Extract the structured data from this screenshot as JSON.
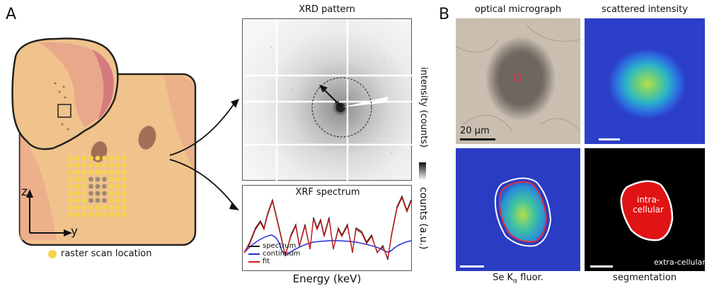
{
  "panels": {
    "a_letter": "A",
    "b_letter": "B"
  },
  "schematic": {
    "axis_z": "z",
    "axis_y": "y",
    "legend_label": "raster scan location",
    "legend_color": "#f2d54a"
  },
  "xrd": {
    "title": "XRD pattern",
    "q_label": "q",
    "q_sub": "r",
    "colorbar_label": "intensity (counts)"
  },
  "xrf": {
    "title": "XRF spectrum",
    "ylabel": "counts (a.u.)",
    "xlabel": "Energy (keV)",
    "legend": [
      {
        "name": "spectrum",
        "color": "#111111"
      },
      {
        "name": "continuum",
        "color": "#1d2fd6"
      },
      {
        "name": "fit",
        "color": "#c81e1e"
      }
    ]
  },
  "panel_b": {
    "optical_title": "optical micrograph",
    "scatter_title": "scattered intensity",
    "scale_label": "20 µm",
    "se_label_prefix": "Se K",
    "se_label_greek": "α",
    "se_label_suffix": " fluor.",
    "seg_label": "segmentation",
    "intra_line1": "intra-",
    "intra_line2": "cellular",
    "extra_label": "extra-cellular"
  }
}
